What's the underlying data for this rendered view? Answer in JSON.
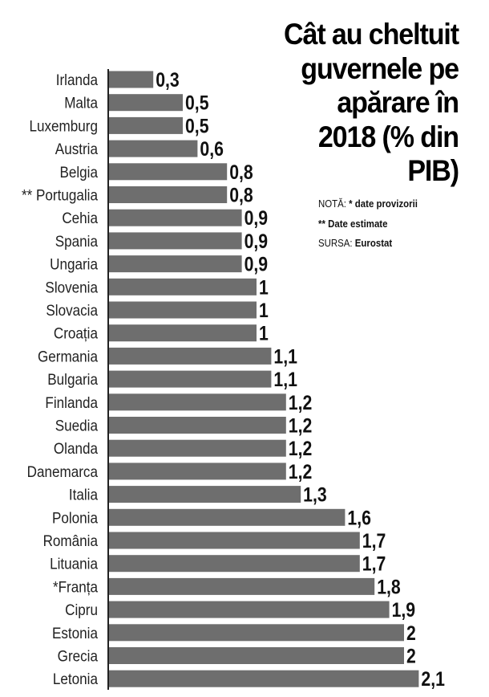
{
  "chart_data": {
    "type": "bar",
    "orientation": "horizontal",
    "title": "Cât au cheltuit guvernele pe apărare în 2018 (% din PIB)",
    "title_lines": [
      "Cât au cheltuit",
      "guvernele pe",
      "apărare în",
      "2018 (% din",
      "PIB)"
    ],
    "categories": [
      "Irlanda",
      "Malta",
      "Luxemburg",
      "Austria",
      "Belgia",
      "** Portugalia",
      "Cehia",
      "Spania",
      "Ungaria",
      "Slovenia",
      "Slovacia",
      "Croația",
      "Germania",
      "Bulgaria",
      "Finlanda",
      "Suedia",
      "Olanda",
      "Danemarca",
      "Italia",
      "Polonia",
      "România",
      "Lituania",
      "*Franța",
      "Cipru",
      "Estonia",
      "Grecia",
      "Letonia"
    ],
    "values": [
      0.3,
      0.5,
      0.5,
      0.6,
      0.8,
      0.8,
      0.9,
      0.9,
      0.9,
      1,
      1,
      1,
      1.1,
      1.1,
      1.2,
      1.2,
      1.2,
      1.2,
      1.3,
      1.6,
      1.7,
      1.7,
      1.8,
      1.9,
      2,
      2,
      2.1
    ],
    "value_labels": [
      "0,3",
      "0,5",
      "0,5",
      "0,6",
      "0,8",
      "0,8",
      "0,9",
      "0,9",
      "0,9",
      "1",
      "1",
      "1",
      "1,1",
      "1,1",
      "1,2",
      "1,2",
      "1,2",
      "1,2",
      "1,3",
      "1,6",
      "1,7",
      "1,7",
      "1,8",
      "1,9",
      "2",
      "2",
      "2,1"
    ],
    "xlim": [
      0,
      2.1
    ],
    "grid": false,
    "bar_color": "#6e6e6e",
    "notes": {
      "nota_label": "NOTĂ:",
      "nota_text": "* date provizorii",
      "estimate_text": "** Date estimate",
      "source_label": "SURSA:",
      "source_text": "Eurostat"
    }
  }
}
